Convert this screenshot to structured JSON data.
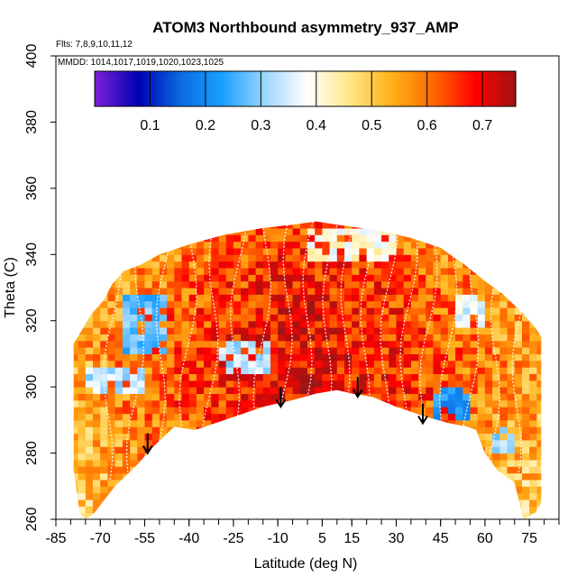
{
  "chart_data": {
    "type": "heatmap",
    "title": "ATOM3 Northbound asymmetry_937_AMP",
    "flights_note": "Flts: 7,8,9,10,11,12",
    "mmdd_note": "MMDD: 1014,1017,1019,1020,1023,1025",
    "xlabel": "Latitude (deg N)",
    "ylabel": "Theta (C)",
    "xlim": [
      -85,
      85
    ],
    "ylim": [
      260,
      400
    ],
    "x_ticks": [
      -85,
      -70,
      -55,
      -40,
      -25,
      -10,
      5,
      15,
      30,
      45,
      60,
      75
    ],
    "y_ticks": [
      260,
      280,
      300,
      320,
      340,
      360,
      380,
      400
    ],
    "colorbar": {
      "range": [
        0.0,
        0.76
      ],
      "ticks": [
        0.1,
        0.2,
        0.3,
        0.4,
        0.5,
        0.6,
        0.7
      ],
      "colors": [
        "#7a1fd6",
        "#0000b4",
        "#0a6be0",
        "#1aa0ff",
        "#9cd6ff",
        "#ffffff",
        "#ffe88a",
        "#ffb21a",
        "#ff6a00",
        "#ff0000",
        "#9c1515"
      ]
    },
    "arrows": [
      {
        "lat": -54,
        "theta": 280
      },
      {
        "lat": -9,
        "theta": 294
      },
      {
        "lat": 17,
        "theta": 297
      },
      {
        "lat": 39,
        "theta": 289
      }
    ],
    "boundary": {
      "top": [
        [
          -79,
          313
        ],
        [
          -77,
          316
        ],
        [
          -73,
          322
        ],
        [
          -69,
          326
        ],
        [
          -66,
          331
        ],
        [
          -62,
          335
        ],
        [
          -56,
          337
        ],
        [
          -50,
          340
        ],
        [
          -40,
          343
        ],
        [
          -28,
          346
        ],
        [
          -15,
          348
        ],
        [
          -5,
          349
        ],
        [
          3,
          350
        ],
        [
          10,
          349
        ],
        [
          18,
          348
        ],
        [
          25,
          347
        ],
        [
          35,
          345
        ],
        [
          45,
          342
        ],
        [
          53,
          337
        ],
        [
          60,
          332
        ],
        [
          66,
          328
        ],
        [
          72,
          323
        ],
        [
          77,
          318
        ],
        [
          79,
          315
        ]
      ],
      "bottom": [
        [
          79,
          265
        ],
        [
          77,
          262
        ],
        [
          73,
          260
        ],
        [
          70,
          271
        ],
        [
          64,
          275
        ],
        [
          60,
          280
        ],
        [
          57,
          287
        ],
        [
          54,
          288
        ],
        [
          48,
          289
        ],
        [
          40,
          291
        ],
        [
          30,
          294
        ],
        [
          22,
          297
        ],
        [
          15,
          298
        ],
        [
          10,
          299
        ],
        [
          3,
          298
        ],
        [
          -5,
          296
        ],
        [
          -15,
          294
        ],
        [
          -28,
          290
        ],
        [
          -38,
          287
        ],
        [
          -45,
          288
        ],
        [
          -52,
          282
        ],
        [
          -58,
          276
        ],
        [
          -65,
          270
        ],
        [
          -72,
          262
        ],
        [
          -75,
          260
        ],
        [
          -77,
          262
        ],
        [
          -79,
          275
        ]
      ]
    },
    "low_regions": [
      {
        "lat": [
          -63,
          -48
        ],
        "theta": [
          310,
          327
        ],
        "value": 0.27
      },
      {
        "lat": [
          -75,
          -55
        ],
        "theta": [
          298,
          306
        ],
        "value": 0.33
      },
      {
        "lat": [
          -30,
          -12
        ],
        "theta": [
          305,
          313
        ],
        "value": 0.33
      },
      {
        "lat": [
          42,
          55
        ],
        "theta": [
          291,
          300
        ],
        "value": 0.22
      },
      {
        "lat": [
          62,
          70
        ],
        "theta": [
          281,
          288
        ],
        "value": 0.3
      },
      {
        "lat": [
          0,
          30
        ],
        "theta": [
          338,
          348
        ],
        "value": 0.4
      },
      {
        "lat": [
          50,
          60
        ],
        "theta": [
          318,
          328
        ],
        "value": 0.36
      }
    ]
  }
}
